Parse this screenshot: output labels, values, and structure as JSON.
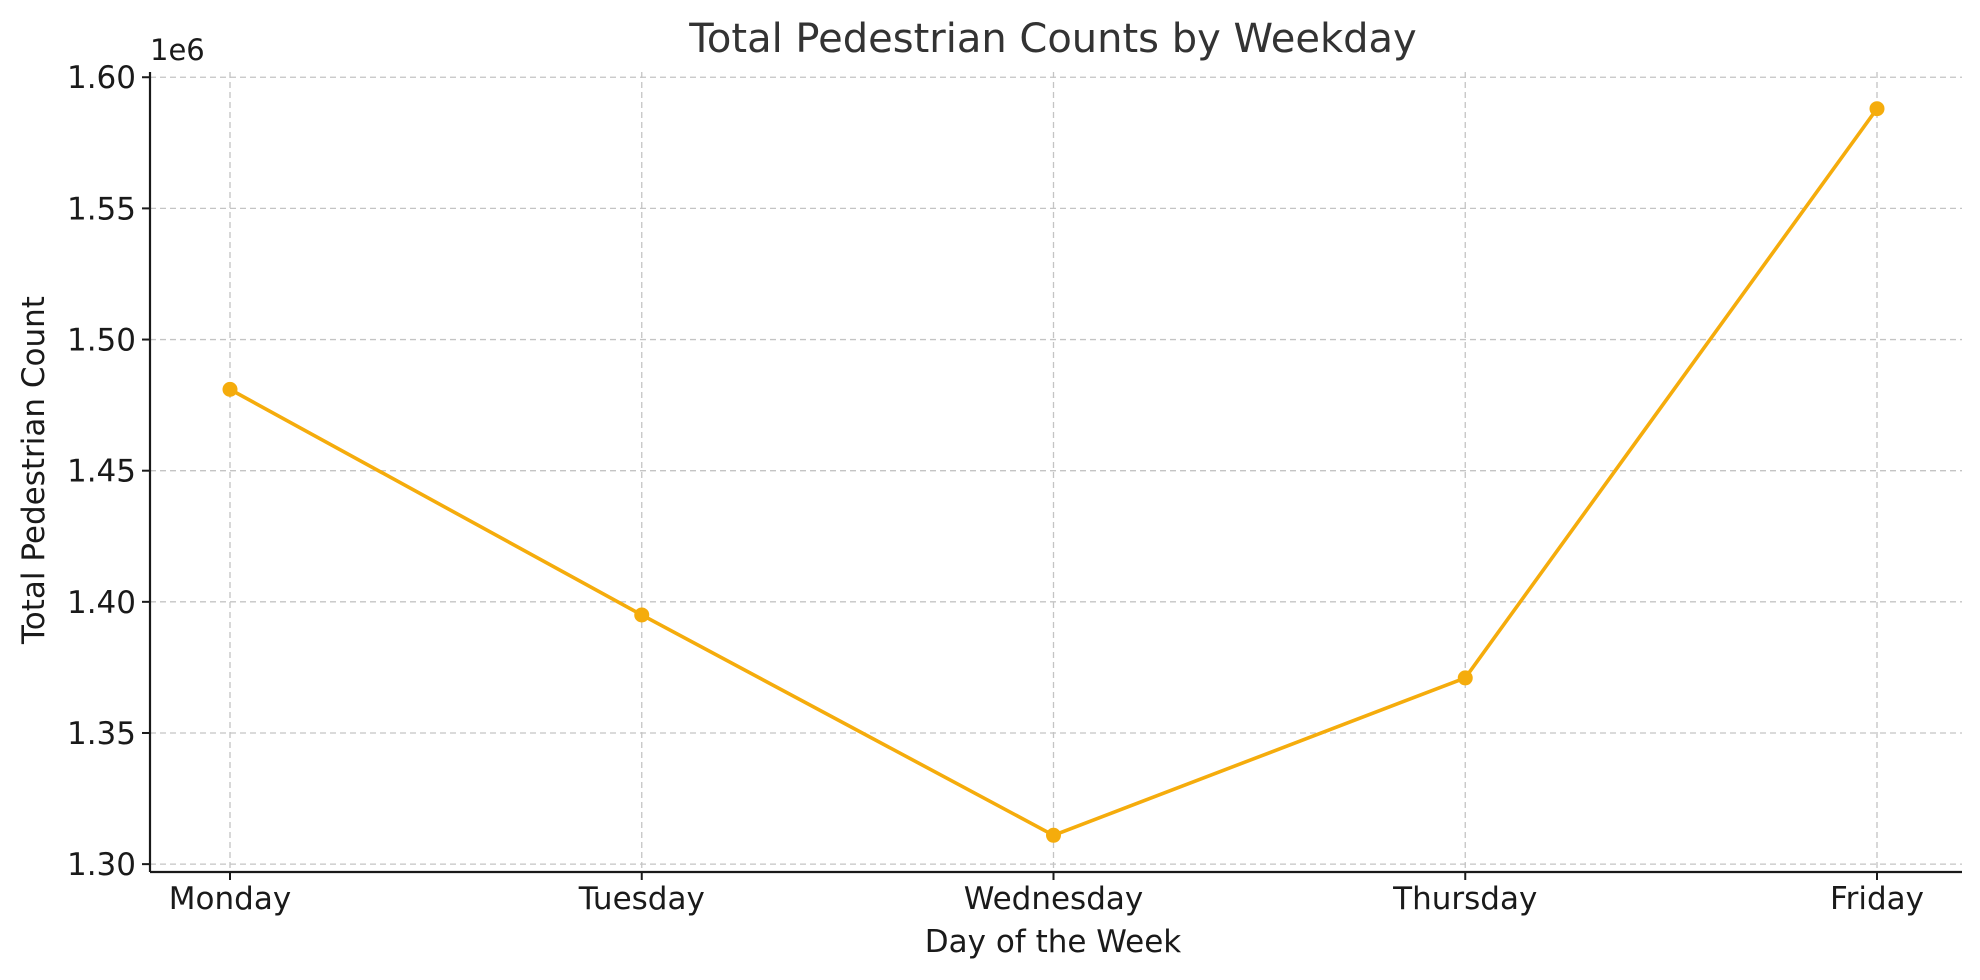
{
  "chart_data": {
    "type": "line",
    "title": "Total Pedestrian Counts by Weekday",
    "xlabel": "Day of the Week",
    "ylabel": "Total Pedestrian Count",
    "y_offset_label": "1e6",
    "categories": [
      "Monday",
      "Tuesday",
      "Wednesday",
      "Thursday",
      "Friday"
    ],
    "series": [
      {
        "values": [
          1481000,
          1395000,
          1311000,
          1371000,
          1588000
        ],
        "color": "#f5ac0c"
      }
    ],
    "ylim": [
      1.297,
      1.602
    ],
    "yticks": [
      1.3,
      1.35,
      1.4,
      1.45,
      1.5,
      1.55,
      1.6
    ],
    "ytick_labels": [
      "1.30",
      "1.35",
      "1.40",
      "1.45",
      "1.50",
      "1.55",
      "1.60"
    ],
    "y_scale_factor": 1000000,
    "grid": true,
    "grid_style": "dashed"
  }
}
